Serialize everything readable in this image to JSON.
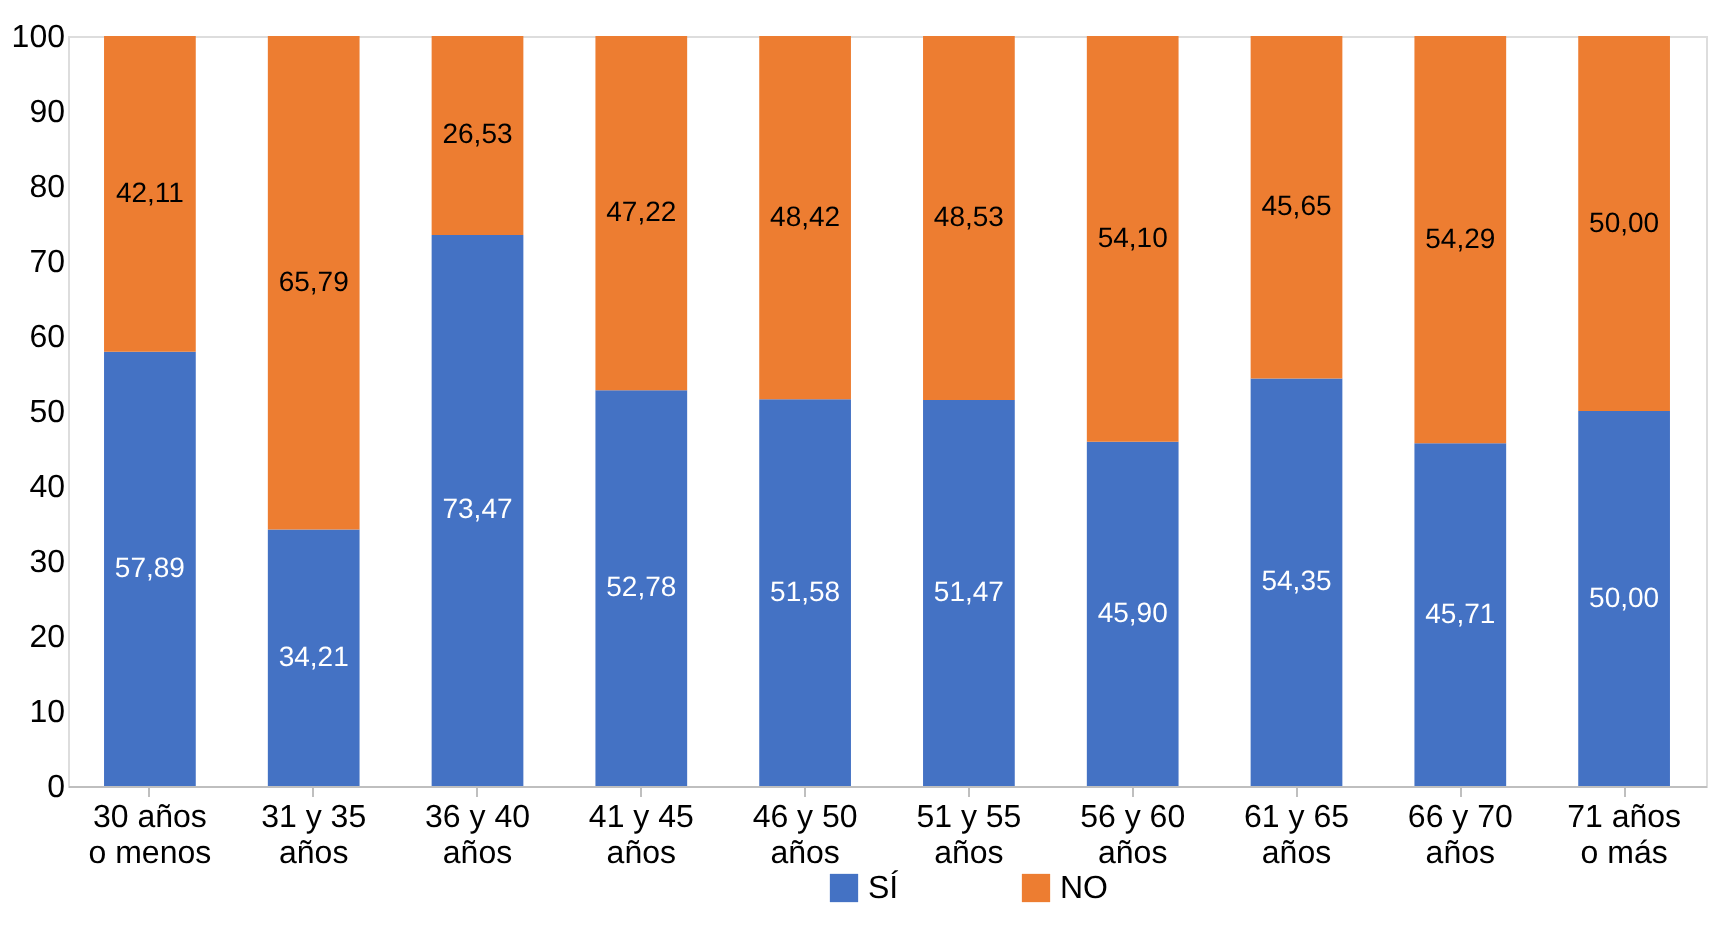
{
  "chart_data": {
    "type": "bar",
    "stacked": true,
    "categories": [
      "30 años\no menos",
      "31 y 35\naños",
      "36 y 40\naños",
      "41 y 45\naños",
      "46 y 50\naños",
      "51 y 55\naños",
      "56 y 60\naños",
      "61 y 65\naños",
      "66 y 70\naños",
      "71 años\no más"
    ],
    "series": [
      {
        "name": "SÍ",
        "color": "#4472c4",
        "values": [
          57.89,
          34.21,
          73.47,
          52.78,
          51.58,
          51.47,
          45.9,
          54.35,
          45.71,
          50.0
        ],
        "value_labels": [
          "57,89",
          "34,21",
          "73,47",
          "52,78",
          "51,58",
          "51,47",
          "45,90",
          "54,35",
          "45,71",
          "50,00"
        ]
      },
      {
        "name": "NO",
        "color": "#ed7d31",
        "values": [
          42.11,
          65.79,
          26.53,
          47.22,
          48.42,
          48.53,
          54.1,
          45.65,
          54.29,
          50.0
        ],
        "value_labels": [
          "42,11",
          "65,79",
          "26,53",
          "47,22",
          "48,42",
          "48,53",
          "54,10",
          "45,65",
          "54,29",
          "50,00"
        ]
      }
    ],
    "ylim": [
      0,
      100
    ],
    "yticks": [
      0,
      10,
      20,
      30,
      40,
      50,
      60,
      70,
      80,
      90,
      100
    ],
    "grid": false,
    "legend": "bottom"
  }
}
